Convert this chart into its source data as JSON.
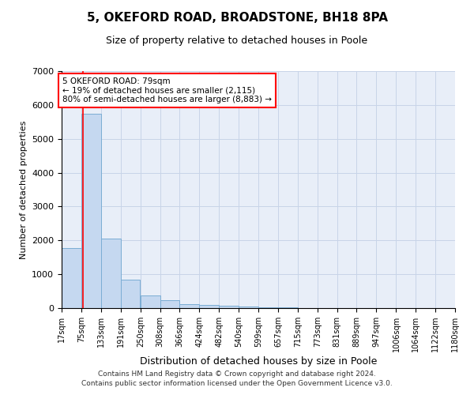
{
  "title": "5, OKEFORD ROAD, BROADSTONE, BH18 8PA",
  "subtitle": "Size of property relative to detached houses in Poole",
  "xlabel": "Distribution of detached houses by size in Poole",
  "ylabel": "Number of detached properties",
  "bar_left_edges": [
    17,
    75,
    133,
    191,
    250,
    308,
    366,
    424,
    482,
    540,
    599,
    657,
    715,
    773,
    831,
    889,
    947,
    1006,
    1064,
    1122
  ],
  "bar_heights": [
    1780,
    5750,
    2050,
    830,
    375,
    230,
    110,
    90,
    65,
    45,
    30,
    25,
    0,
    0,
    0,
    0,
    0,
    0,
    0,
    0
  ],
  "bin_width": 58,
  "bar_color": "#c5d8f0",
  "bar_edgecolor": "#7badd4",
  "property_line_x": 79,
  "property_line_color": "red",
  "annotation_text": "5 OKEFORD ROAD: 79sqm\n← 19% of detached houses are smaller (2,115)\n80% of semi-detached houses are larger (8,883) →",
  "annotation_box_color": "red",
  "ylim": [
    0,
    7000
  ],
  "yticks": [
    0,
    1000,
    2000,
    3000,
    4000,
    5000,
    6000,
    7000
  ],
  "xtick_labels": [
    "17sqm",
    "75sqm",
    "133sqm",
    "191sqm",
    "250sqm",
    "308sqm",
    "366sqm",
    "424sqm",
    "482sqm",
    "540sqm",
    "599sqm",
    "657sqm",
    "715sqm",
    "773sqm",
    "831sqm",
    "889sqm",
    "947sqm",
    "1006sqm",
    "1064sqm",
    "1122sqm",
    "1180sqm"
  ],
  "grid_color": "#c8d4e8",
  "background_color": "#e8eef8",
  "footer_line1": "Contains HM Land Registry data © Crown copyright and database right 2024.",
  "footer_line2": "Contains public sector information licensed under the Open Government Licence v3.0.",
  "title_fontsize": 11,
  "subtitle_fontsize": 9,
  "xlabel_fontsize": 9,
  "ylabel_fontsize": 8,
  "ytick_fontsize": 8,
  "xtick_fontsize": 7,
  "footer_fontsize": 6.5
}
